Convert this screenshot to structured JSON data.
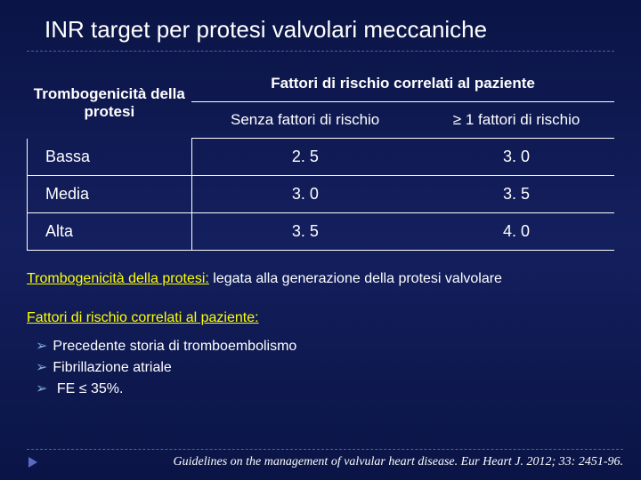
{
  "title": "INR target per protesi valvolari meccaniche",
  "table": {
    "header_row": "Trombogenicità della protesi",
    "header_span": "Fattori di rischio correlati al paziente",
    "sub_no_risk": "Senza fattori di rischio",
    "sub_risk": "≥ 1 fattori di rischio",
    "rows": [
      {
        "label": "Bassa",
        "no_risk": "2. 5",
        "risk": "3. 0"
      },
      {
        "label": "Media",
        "no_risk": "3. 0",
        "risk": "3. 5"
      },
      {
        "label": "Alta",
        "no_risk": "3. 5",
        "risk": "4. 0"
      }
    ]
  },
  "note1_label": "Trombogenicità della protesi:",
  "note1_text": " legata alla generazione della protesi valvolare",
  "note2_label": "Fattori di rischio correlati al paziente:",
  "bullets": {
    "b1": "Precedente storia di tromboembolismo",
    "b2": "Fibrillazione atriale",
    "b3": " FE ≤ 35%."
  },
  "citation": "Guidelines on the management of valvular heart disease. Eur Heart J. 2012; 33: 2451-96."
}
